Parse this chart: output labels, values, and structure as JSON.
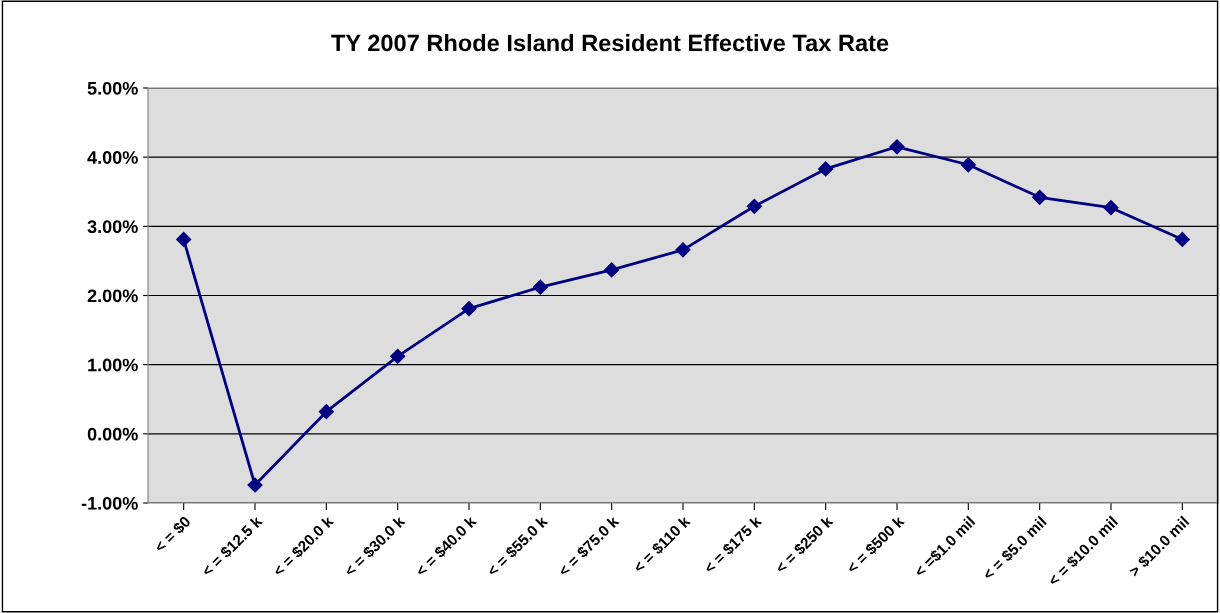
{
  "chart_data": {
    "type": "line",
    "title": "TY 2007 Rhode Island Resident Effective Tax Rate",
    "categories": [
      "< = $0",
      "< = $12.5 k",
      "< = $20.0 k",
      "< = $30.0 k",
      "< = $40.0 k",
      "< = $55.0 k",
      "< = $75.0 k",
      "< = $110 k",
      "< = $175 k",
      "< = $250 k",
      "< = $500 k",
      "< =$1.0 mil",
      "< = $5.0 mil",
      "< = $10.0 mil",
      "> $10.0 mil"
    ],
    "series": [
      {
        "color": "#000080",
        "values": [
          2.81,
          -0.74,
          0.32,
          1.12,
          1.81,
          2.12,
          2.37,
          2.66,
          3.29,
          3.83,
          4.15,
          3.89,
          3.42,
          3.27,
          2.81
        ]
      }
    ],
    "ylim": [
      -1,
      5
    ],
    "yticks": [
      {
        "value": -1,
        "label": "-1.00%"
      },
      {
        "value": 0,
        "label": "0.00%"
      },
      {
        "value": 1,
        "label": "1.00%"
      },
      {
        "value": 2,
        "label": "2.00%"
      },
      {
        "value": 3,
        "label": "3.00%"
      },
      {
        "value": 4,
        "label": "4.00%"
      },
      {
        "value": 5,
        "label": "5.00%"
      }
    ],
    "grid": "y",
    "marker": "diamond",
    "line_style": "solid"
  }
}
